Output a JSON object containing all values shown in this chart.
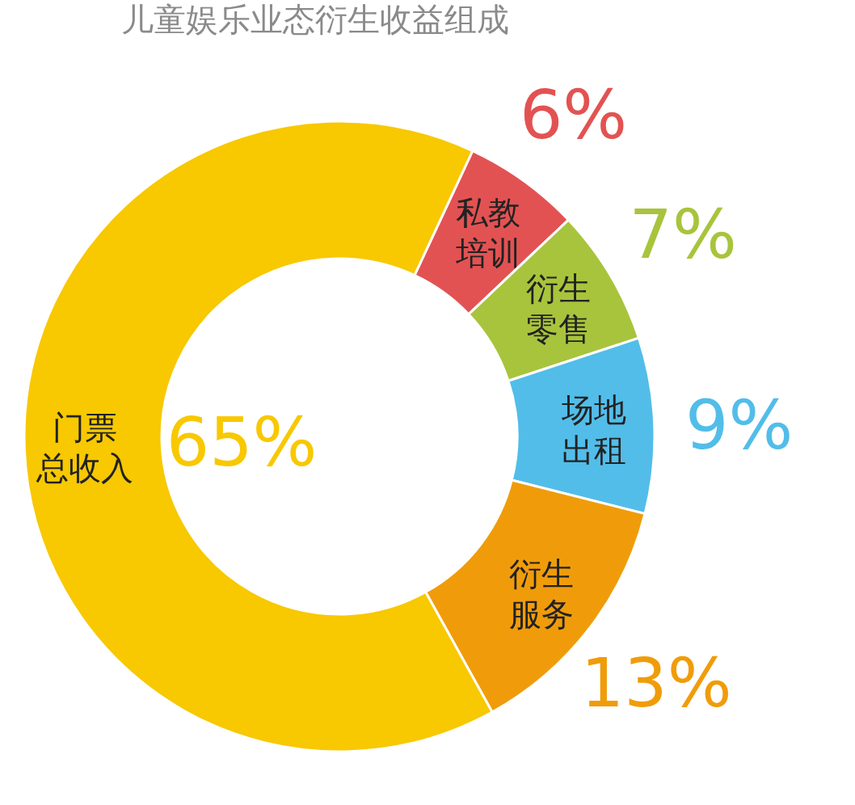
{
  "chart_data": {
    "type": "donut",
    "title": "儿童娱乐业态衍生收益组成",
    "categories": [
      "私教培训",
      "衍生零售",
      "场地出租",
      "衍生服务",
      "门票总收入"
    ],
    "values": [
      6,
      7,
      9,
      13,
      65
    ],
    "colors": [
      "#e35252",
      "#a8c43c",
      "#52bde9",
      "#f09c0a",
      "#f8c800"
    ],
    "value_labels": [
      "6%",
      "7%",
      "9%",
      "13%",
      "65%"
    ]
  }
}
